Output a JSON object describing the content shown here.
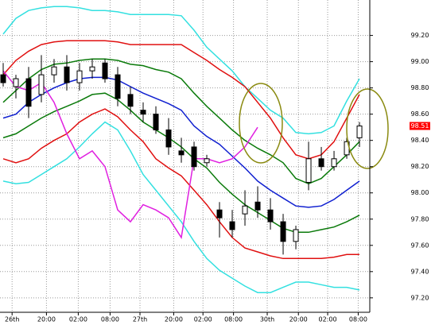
{
  "chart_data": {
    "type": "candlestick",
    "xlim": [
      -0.25,
      28.81
    ],
    "ylim": [
      97.09,
      99.47
    ],
    "grid": true,
    "yticks": [
      {
        "value": 97.2,
        "label": "97.20"
      },
      {
        "value": 97.4,
        "label": "97.40"
      },
      {
        "value": 97.6,
        "label": "97.60"
      },
      {
        "value": 97.8,
        "label": "97.80"
      },
      {
        "value": 98.0,
        "label": "98.00"
      },
      {
        "value": 98.2,
        "label": "98.20"
      },
      {
        "value": 98.4,
        "label": "98.40"
      },
      {
        "value": 98.6,
        "label": "98.60"
      },
      {
        "value": 98.8,
        "label": "98.80"
      },
      {
        "value": 99.0,
        "label": "99.00"
      },
      {
        "value": 99.2,
        "label": "99.20"
      }
    ],
    "xticks": [
      {
        "value": 0.7,
        "label": "26th"
      },
      {
        "value": 3.4,
        "label": "20:00"
      },
      {
        "value": 5.9,
        "label": "02:00"
      },
      {
        "value": 8.4,
        "label": "08:00"
      },
      {
        "value": 10.75,
        "label": "27th"
      },
      {
        "value": 13.4,
        "label": "20:00"
      },
      {
        "value": 15.7,
        "label": "02:00"
      },
      {
        "value": 18.1,
        "label": "08:00"
      },
      {
        "value": 20.75,
        "label": "30th"
      },
      {
        "value": 23.2,
        "label": "20:00"
      },
      {
        "value": 25.5,
        "label": "02:00"
      },
      {
        "value": 27.9,
        "label": "08:00"
      }
    ],
    "x": [
      0,
      1,
      2,
      3,
      4,
      5,
      6,
      7,
      8,
      9,
      10,
      11,
      12,
      13,
      14,
      15,
      16,
      17,
      18,
      19,
      20,
      21,
      22,
      23,
      24,
      25,
      26,
      27,
      28
    ],
    "series": [
      {
        "color": "#33e0e0",
        "values": [
          99.21,
          99.33,
          99.39,
          99.41,
          99.42,
          99.42,
          99.41,
          99.39,
          99.39,
          99.38,
          99.36,
          99.36,
          99.36,
          99.36,
          99.35,
          99.24,
          99.11,
          99.02,
          98.93,
          98.81,
          98.72,
          98.63,
          98.57,
          98.46,
          98.45,
          98.46,
          98.51,
          98.7,
          98.87
        ]
      },
      {
        "color": "#e01010",
        "values": [
          98.9,
          99.01,
          99.08,
          99.13,
          99.15,
          99.16,
          99.16,
          99.16,
          99.16,
          99.15,
          99.13,
          99.13,
          99.13,
          99.13,
          99.13,
          99.07,
          99.01,
          98.94,
          98.88,
          98.81,
          98.69,
          98.57,
          98.42,
          98.29,
          98.26,
          98.29,
          98.39,
          98.57,
          98.75
        ]
      },
      {
        "color": "#0a7a0a",
        "values": [
          98.69,
          98.78,
          98.87,
          98.94,
          98.98,
          98.99,
          99.01,
          99.02,
          99.02,
          99.01,
          98.98,
          98.97,
          98.94,
          98.92,
          98.87,
          98.76,
          98.66,
          98.57,
          98.48,
          98.4,
          98.34,
          98.29,
          98.23,
          98.11,
          98.07,
          98.11,
          98.2,
          98.29,
          98.39
        ]
      },
      {
        "color": "#1020d0",
        "values": [
          98.57,
          98.6,
          98.69,
          98.75,
          98.8,
          98.84,
          98.87,
          98.88,
          98.88,
          98.86,
          98.81,
          98.76,
          98.72,
          98.68,
          98.63,
          98.51,
          98.43,
          98.37,
          98.28,
          98.19,
          98.09,
          98.02,
          97.96,
          97.9,
          97.89,
          97.9,
          97.95,
          98.02,
          98.09
        ]
      },
      {
        "color": "#0a7a0a",
        "values": [
          98.42,
          98.45,
          98.51,
          98.57,
          98.62,
          98.66,
          98.7,
          98.75,
          98.76,
          98.71,
          98.63,
          98.54,
          98.48,
          98.42,
          98.35,
          98.26,
          98.19,
          98.08,
          97.99,
          97.91,
          97.85,
          97.79,
          97.73,
          97.7,
          97.7,
          97.72,
          97.74,
          97.78,
          97.83
        ]
      },
      {
        "color": "#e01010",
        "values": [
          98.26,
          98.23,
          98.26,
          98.34,
          98.4,
          98.45,
          98.54,
          98.6,
          98.64,
          98.58,
          98.48,
          98.39,
          98.26,
          98.19,
          98.13,
          98.02,
          97.91,
          97.78,
          97.66,
          97.58,
          97.55,
          97.52,
          97.5,
          97.5,
          97.5,
          97.5,
          97.51,
          97.53,
          97.53
        ]
      },
      {
        "color": "#33e0e0",
        "values": [
          98.09,
          98.07,
          98.08,
          98.14,
          98.2,
          98.26,
          98.35,
          98.45,
          98.54,
          98.48,
          98.32,
          98.14,
          98.02,
          97.9,
          97.78,
          97.63,
          97.5,
          97.41,
          97.35,
          97.29,
          97.24,
          97.24,
          97.28,
          97.32,
          97.32,
          97.3,
          97.28,
          97.28,
          97.26
        ]
      },
      {
        "color": "#e020e0",
        "values": [
          98.93,
          98.81,
          98.78,
          98.84,
          98.69,
          98.45,
          98.26,
          98.32,
          98.2,
          97.87,
          97.78,
          97.91,
          97.87,
          97.81,
          97.66,
          98.26,
          98.26,
          98.23,
          98.26,
          98.35,
          98.5,
          null,
          null,
          null,
          null,
          null,
          null,
          null,
          null
        ]
      }
    ],
    "candles": {
      "open": [
        98.9,
        98.81,
        98.87,
        98.75,
        98.9,
        98.96,
        98.84,
        98.93,
        98.99,
        98.9,
        98.75,
        98.63,
        98.6,
        98.48,
        98.32,
        98.35,
        98.23,
        97.87,
        97.78,
        97.84,
        97.93,
        97.87,
        97.78,
        97.63,
        98.08,
        98.26,
        98.2,
        98.29,
        98.42
      ],
      "high": [
        98.99,
        98.9,
        98.96,
        99.05,
        99.02,
        99.05,
        98.99,
        99.02,
        99.02,
        98.96,
        98.81,
        98.69,
        98.66,
        98.57,
        98.42,
        98.39,
        98.29,
        97.93,
        97.87,
        98.02,
        98.05,
        97.96,
        97.84,
        97.75,
        98.39,
        98.35,
        98.32,
        98.42,
        98.54
      ],
      "low": [
        98.81,
        98.72,
        98.57,
        98.69,
        98.84,
        98.78,
        98.78,
        98.87,
        98.84,
        98.66,
        98.6,
        98.54,
        98.45,
        98.29,
        98.23,
        98.17,
        98.2,
        97.66,
        97.66,
        97.75,
        97.81,
        97.72,
        97.53,
        97.57,
        98.02,
        98.17,
        98.17,
        98.26,
        98.35
      ],
      "close": [
        98.84,
        98.87,
        98.66,
        98.9,
        98.96,
        98.84,
        98.93,
        98.96,
        98.87,
        98.72,
        98.66,
        98.6,
        98.48,
        98.35,
        98.29,
        98.2,
        98.26,
        97.81,
        97.72,
        97.9,
        97.87,
        97.78,
        97.63,
        97.72,
        98.26,
        98.2,
        98.26,
        98.39,
        98.51
      ]
    },
    "current_price": 98.51,
    "current_price_color": "#ff0000"
  }
}
